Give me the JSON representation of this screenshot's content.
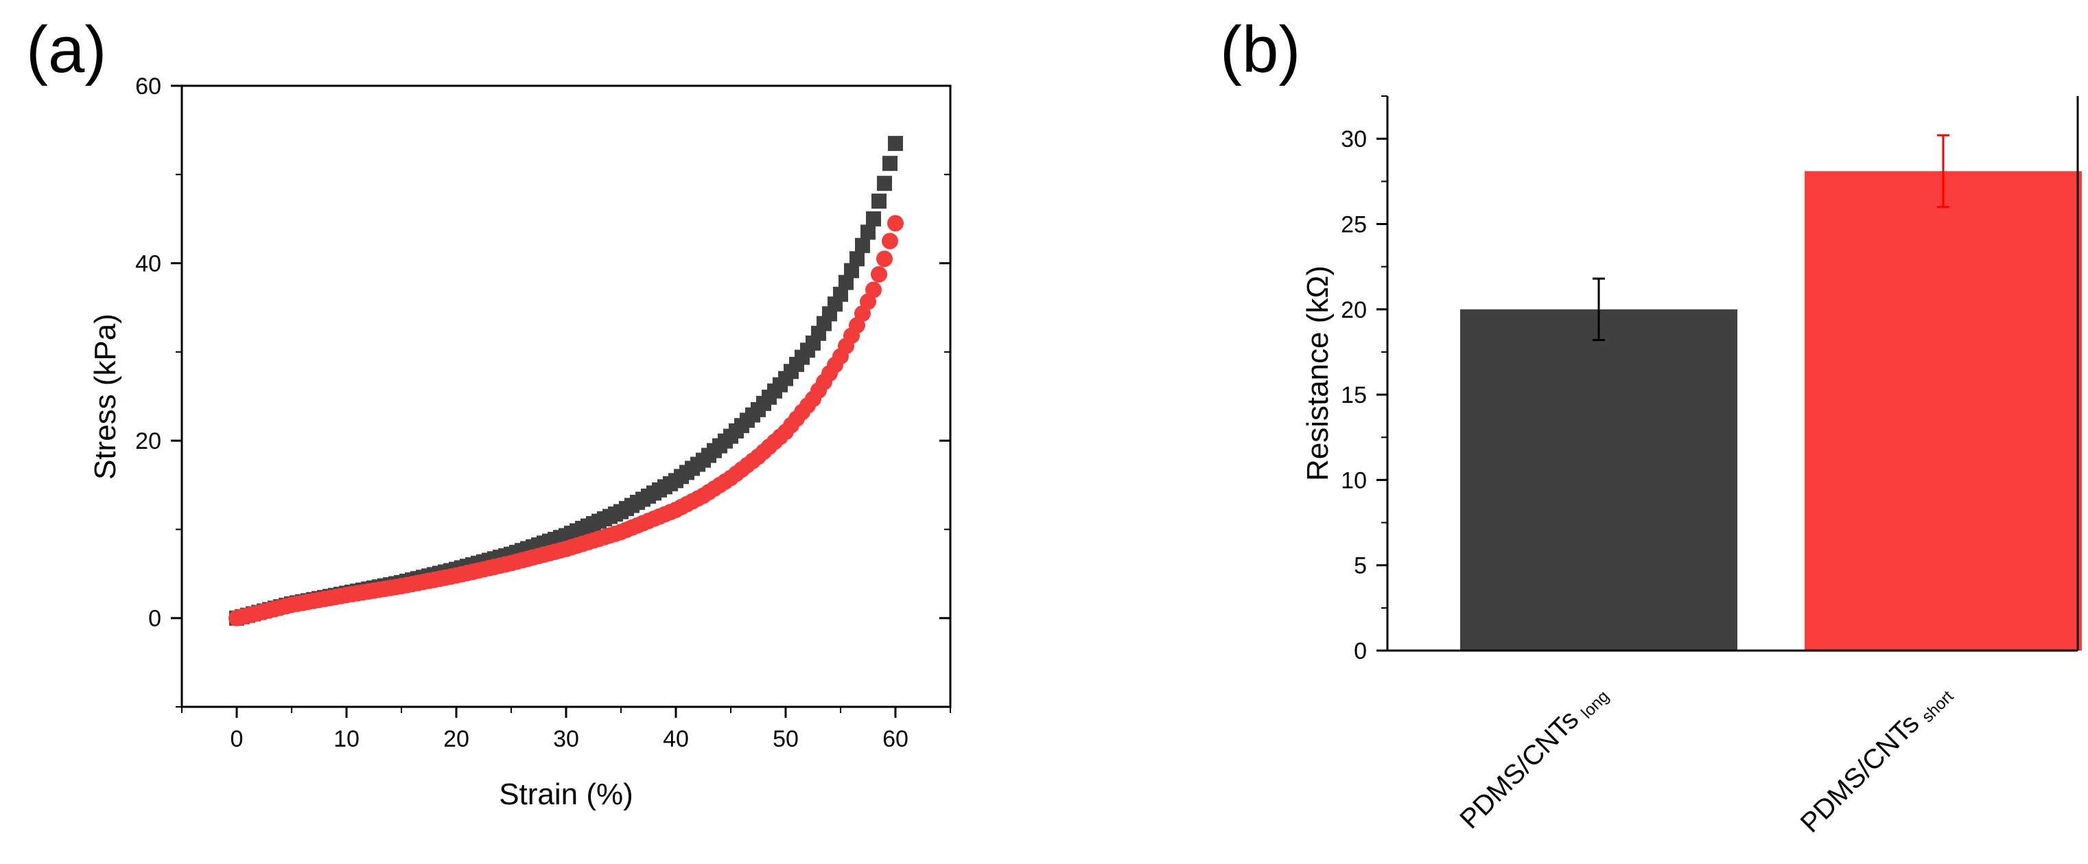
{
  "chart_data": [
    {
      "type": "scatter",
      "panel_label": "(a)",
      "xlabel": "Strain (%)",
      "ylabel": "Stress (kPa)",
      "xlim": [
        -5,
        65
      ],
      "ylim": [
        -10,
        60
      ],
      "xticks": [
        "0",
        "10",
        "20",
        "30",
        "40",
        "50",
        "60"
      ],
      "yticks": [
        "0",
        "20",
        "40",
        "60"
      ],
      "series": [
        {
          "name": "PDMS/CNTs long",
          "marker": "square",
          "color": "#404040",
          "x": [
            0,
            5,
            10,
            15,
            20,
            25,
            30,
            35,
            40,
            42.5,
            45,
            47.5,
            50,
            52.5,
            55,
            56.5,
            58,
            59,
            60
          ],
          "y": [
            0,
            1.6,
            2.8,
            4.0,
            5.5,
            7.2,
            9.3,
            12.0,
            15.5,
            17.8,
            20.5,
            23.5,
            27.0,
            31.0,
            36.5,
            40.5,
            45.0,
            49.0,
            53.5
          ]
        },
        {
          "name": "PDMS/CNTs short",
          "marker": "circle",
          "color": "#f23c3c",
          "x": [
            0,
            5,
            10,
            15,
            20,
            25,
            30,
            35,
            40,
            42.5,
            45,
            47.5,
            50,
            52.5,
            55,
            56.5,
            58,
            59,
            60
          ],
          "y": [
            0,
            1.5,
            2.6,
            3.6,
            4.8,
            6.2,
            7.8,
            9.7,
            12.2,
            13.8,
            15.8,
            18.2,
            21.0,
            24.7,
            29.5,
            33.0,
            37.0,
            40.5,
            44.5
          ]
        }
      ]
    },
    {
      "type": "bar",
      "panel_label": "(b)",
      "ylabel": "Resistance (kΩ)",
      "ylim": [
        0,
        32.5
      ],
      "yticks": [
        "0",
        "5",
        "10",
        "15",
        "20",
        "25",
        "30"
      ],
      "categories": [
        {
          "main": "PDMS/CNTs",
          "sub": "long"
        },
        {
          "main": "PDMS/CNTs",
          "sub": "short"
        }
      ],
      "values": [
        20.0,
        28.1
      ],
      "errors": [
        1.8,
        2.1
      ],
      "colors": [
        "#404040",
        "#f93c3c"
      ],
      "error_colors": [
        "#000000",
        "#ff0000"
      ]
    }
  ]
}
